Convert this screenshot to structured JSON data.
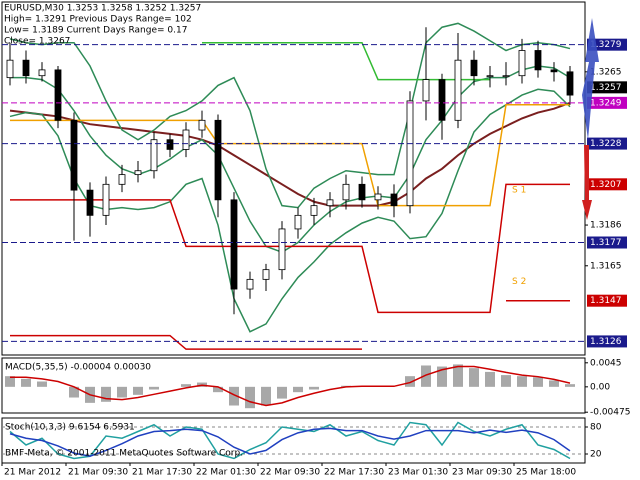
{
  "chart_data": [
    {
      "type": "candlestick",
      "title": "EURUSD,M30  1.3253 1.3258 1.3252 1.3257",
      "info": [
        "High= 1.3291    Previous Days Range= 102",
        "Low= 1.3189    Current Days Range= 0.17",
        "Close= 1.3267"
      ],
      "open": [
        1.3262,
        1.3271,
        1.3263,
        1.3266,
        1.324,
        1.3204,
        1.3191,
        1.3207,
        1.3212,
        1.3214,
        1.323,
        1.3225,
        1.3235,
        1.324,
        1.3199,
        1.3153,
        1.3158,
        1.3163,
        1.3184,
        1.3191,
        1.3196,
        1.3199,
        1.3207,
        1.3199,
        1.3202,
        1.3196,
        1.325,
        1.3261,
        1.324,
        1.3271,
        1.3263,
        1.3263,
        1.3263,
        1.3276,
        1.3266,
        1.3265
      ],
      "high": [
        1.328,
        1.3276,
        1.327,
        1.3268,
        1.3244,
        1.3208,
        1.3211,
        1.3217,
        1.3219,
        1.3234,
        1.3233,
        1.3239,
        1.3245,
        1.3243,
        1.3203,
        1.3162,
        1.3166,
        1.3188,
        1.3195,
        1.32,
        1.3203,
        1.3212,
        1.3211,
        1.3206,
        1.3207,
        1.3255,
        1.3288,
        1.3264,
        1.3285,
        1.3276,
        1.3268,
        1.327,
        1.3282,
        1.3281,
        1.327,
        1.3268
      ],
      "low": [
        1.3258,
        1.3259,
        1.326,
        1.3236,
        1.3178,
        1.318,
        1.3186,
        1.3203,
        1.3208,
        1.321,
        1.3221,
        1.3221,
        1.3231,
        1.319,
        1.314,
        1.3148,
        1.3152,
        1.3158,
        1.3179,
        1.3186,
        1.319,
        1.3194,
        1.3195,
        1.3194,
        1.319,
        1.3192,
        1.324,
        1.323,
        1.3236,
        1.3258,
        1.3257,
        1.3258,
        1.3259,
        1.3262,
        1.326,
        1.3248
      ],
      "close": [
        1.3271,
        1.3263,
        1.3266,
        1.324,
        1.3204,
        1.3191,
        1.3207,
        1.3212,
        1.3214,
        1.323,
        1.3225,
        1.3235,
        1.324,
        1.3199,
        1.3153,
        1.3158,
        1.3163,
        1.3184,
        1.3191,
        1.3196,
        1.3199,
        1.3207,
        1.3199,
        1.3202,
        1.3196,
        1.325,
        1.3261,
        1.324,
        1.3271,
        1.3263,
        1.3263,
        1.3263,
        1.3276,
        1.3266,
        1.3265,
        1.3253
      ],
      "series": [
        {
          "color": "#7a1f1f",
          "values": [
            1.3245,
            1.3244,
            1.3243,
            1.3242,
            1.324,
            1.3238,
            1.3237,
            1.3236,
            1.3235,
            1.3234,
            1.3233,
            1.3232,
            1.323,
            1.3227,
            1.3222,
            1.3217,
            1.3212,
            1.3207,
            1.3202,
            1.3198,
            1.3196,
            1.3196,
            1.3196,
            1.3196,
            1.3198,
            1.3203,
            1.321,
            1.3215,
            1.3222,
            1.3228,
            1.3233,
            1.3237,
            1.3241,
            1.3244,
            1.3246,
            1.3249
          ]
        },
        {
          "color": "#2e8b57",
          "values": [
            1.3262,
            1.3262,
            1.3261,
            1.3256,
            1.3245,
            1.3232,
            1.3222,
            1.3215,
            1.3212,
            1.3215,
            1.322,
            1.3226,
            1.323,
            1.3222,
            1.3205,
            1.3188,
            1.3175,
            1.3172,
            1.3177,
            1.3186,
            1.3193,
            1.3198,
            1.32,
            1.3201,
            1.32,
            1.3212,
            1.323,
            1.324,
            1.3252,
            1.326,
            1.3262,
            1.3262,
            1.3266,
            1.3268,
            1.3267,
            1.3262
          ]
        },
        {
          "color": "#2e8b57",
          "values": [
            1.3282,
            1.328,
            1.3279,
            1.328,
            1.328,
            1.3268,
            1.325,
            1.3235,
            1.323,
            1.3235,
            1.3242,
            1.3245,
            1.325,
            1.3258,
            1.3262,
            1.3245,
            1.3215,
            1.3196,
            1.3195,
            1.3205,
            1.321,
            1.3214,
            1.3213,
            1.3212,
            1.3212,
            1.3245,
            1.328,
            1.3288,
            1.329,
            1.3286,
            1.3281,
            1.3276,
            1.3279,
            1.328,
            1.3279,
            1.3277
          ]
        },
        {
          "color": "#2e8b57",
          "values": [
            1.3242,
            1.3244,
            1.3243,
            1.3232,
            1.321,
            1.3196,
            1.3194,
            1.3195,
            1.3194,
            1.3195,
            1.3198,
            1.3207,
            1.321,
            1.3186,
            1.3148,
            1.3131,
            1.3135,
            1.3148,
            1.3159,
            1.3167,
            1.3176,
            1.3182,
            1.3187,
            1.319,
            1.3188,
            1.3179,
            1.318,
            1.3192,
            1.3214,
            1.3234,
            1.3243,
            1.3248,
            1.3253,
            1.3256,
            1.3255,
            1.3247
          ]
        },
        {
          "color": "#33bb33",
          "values": [
            null,
            null,
            null,
            null,
            null,
            null,
            null,
            null,
            null,
            null,
            null,
            null,
            1.328,
            1.328,
            1.328,
            1.328,
            1.328,
            1.328,
            1.328,
            1.328,
            1.328,
            1.328,
            1.328,
            1.3261,
            1.3261,
            1.3261,
            1.3261,
            1.3261,
            1.3261,
            1.3261,
            1.3261,
            null,
            null,
            null,
            null,
            null
          ]
        },
        {
          "color": "#f0a000",
          "values": [
            1.324,
            1.324,
            1.324,
            1.324,
            1.324,
            1.324,
            1.324,
            1.324,
            1.324,
            1.324,
            1.324,
            1.324,
            1.324,
            1.3228,
            1.3228,
            1.3228,
            1.3228,
            1.3228,
            1.3228,
            1.3228,
            1.3228,
            1.3228,
            1.3228,
            1.3196,
            1.3196,
            1.3196,
            1.3196,
            1.3196,
            1.3196,
            1.3196,
            1.3196,
            1.3248,
            1.3248,
            1.3248,
            1.3248,
            1.3248
          ]
        },
        {
          "color": "#cc0000",
          "values": [
            1.3199,
            1.3199,
            1.3199,
            1.3199,
            1.3199,
            1.3199,
            1.3199,
            1.3199,
            1.3199,
            1.3199,
            1.3199,
            1.3175,
            1.3175,
            1.3175,
            1.3175,
            1.3175,
            1.3175,
            1.3175,
            1.3175,
            1.3175,
            1.3175,
            1.3175,
            1.3175,
            1.3141,
            1.3141,
            1.3141,
            1.3141,
            1.3141,
            1.3141,
            1.3141,
            1.3141,
            1.3207,
            1.3207,
            1.3207,
            1.3207,
            1.3207
          ]
        },
        {
          "color": "#cc0000",
          "values": [
            1.3129,
            1.3129,
            1.3129,
            1.3129,
            1.3129,
            1.3129,
            1.3129,
            1.3129,
            1.3129,
            1.3129,
            1.3129,
            1.3122,
            1.3122,
            1.3122,
            1.3122,
            1.3122,
            1.3122,
            1.3122,
            1.3122,
            1.3122,
            1.3122,
            1.3122,
            1.3122,
            null,
            null,
            null,
            null,
            null,
            null,
            null,
            null,
            1.3147,
            1.3147,
            1.3147,
            1.3147,
            1.3147
          ]
        }
      ],
      "levels": [
        {
          "value": 1.3279,
          "color": "#1a1a8c",
          "dash": true
        },
        {
          "value": 1.3257,
          "color": "#000000",
          "dash": false
        },
        {
          "value": 1.3249,
          "color": "#c000c0",
          "dash": true
        },
        {
          "value": 1.3228,
          "color": "#1a1a8c",
          "dash": true
        },
        {
          "value": 1.3207,
          "color": "#cc0000",
          "dash": false
        },
        {
          "value": 1.3177,
          "color": "#1a1a8c",
          "dash": true
        },
        {
          "value": 1.3147,
          "color": "#cc0000",
          "dash": false
        },
        {
          "value": 1.3126,
          "color": "#1a1a8c",
          "dash": true
        }
      ],
      "annotations": [
        {
          "text": "S 1",
          "value": 1.3204
        },
        {
          "text": "S 2",
          "value": 1.3157
        }
      ],
      "ylim": [
        1.3119,
        1.3301
      ],
      "yticks": [
        1.3265,
        1.3186,
        1.3165
      ],
      "x_labels": [
        "21 Mar 2012",
        "21 Mar 09:30",
        "21 Mar 17:30",
        "22 Mar 01:30",
        "22 Mar 09:30",
        "22 Mar 17:30",
        "23 Mar 01:30",
        "23 Mar 09:30",
        "25 Mar 18:00"
      ]
    },
    {
      "type": "bar",
      "title": "MACD(5,35,5) -0.00004 0.00030",
      "series": [
        {
          "color": "#a8a8a8",
          "values": [
            0.002,
            0.0015,
            0.001,
            0.0,
            -0.002,
            -0.003,
            -0.0028,
            -0.002,
            -0.0015,
            -0.0005,
            0.0,
            0.0005,
            0.0008,
            -0.001,
            -0.0035,
            -0.004,
            -0.0035,
            -0.0022,
            -0.001,
            -0.0005,
            0.0,
            0.0002,
            0.0001,
            0.0002,
            0.0,
            0.002,
            0.004,
            0.0038,
            0.0042,
            0.0035,
            0.0028,
            0.0022,
            0.002,
            0.0018,
            0.0012,
            0.0005
          ]
        },
        {
          "color": "#cc0000",
          "values": [
            0.0018,
            0.0018,
            0.0015,
            0.001,
            0.0,
            -0.0015,
            -0.0022,
            -0.0024,
            -0.002,
            -0.0014,
            -0.0008,
            -0.0002,
            0.0003,
            0.0,
            -0.0015,
            -0.0028,
            -0.0035,
            -0.003,
            -0.002,
            -0.0012,
            -0.0005,
            0.0,
            0.0001,
            0.0001,
            0.0001,
            0.0008,
            0.0022,
            0.0032,
            0.0038,
            0.0038,
            0.0033,
            0.0027,
            0.0022,
            0.0019,
            0.0014,
            0.0007
          ]
        }
      ],
      "ylim": [
        -0.0049,
        0.0054
      ],
      "yticks": [
        0.0045,
        {
          "value": 0,
          "label": "0.00"
        },
        -0.00475
      ]
    },
    {
      "type": "line",
      "title": "Stoch(10,3,3) 9.6154 6.5931",
      "note": "BMF-Meta, © 2001-2011 MetaQuotes Software Corp.",
      "series": [
        {
          "color": "#20a0a0",
          "values": [
            70,
            40,
            55,
            20,
            10,
            15,
            60,
            55,
            70,
            85,
            60,
            80,
            75,
            20,
            10,
            30,
            45,
            80,
            75,
            70,
            85,
            60,
            70,
            50,
            40,
            90,
            85,
            40,
            90,
            70,
            60,
            75,
            85,
            40,
            30,
            10
          ]
        },
        {
          "color": "#2040c0",
          "values": [
            65,
            55,
            50,
            38,
            22,
            15,
            28,
            43,
            60,
            70,
            72,
            75,
            72,
            58,
            35,
            20,
            28,
            52,
            67,
            75,
            77,
            72,
            72,
            60,
            53,
            60,
            72,
            72,
            72,
            67,
            73,
            68,
            73,
            67,
            52,
            27
          ]
        }
      ],
      "ylim": [
        0,
        100
      ],
      "yticks": [
        80,
        20
      ],
      "grid": true
    }
  ]
}
